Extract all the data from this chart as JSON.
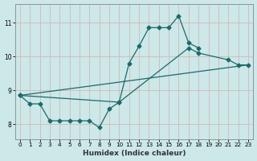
{
  "title": "",
  "xlabel": "Humidex (Indice chaleur)",
  "bg_color": "#cce8e8",
  "grid_color": "#b0d0d0",
  "line_color": "#1a6b6b",
  "xlim": [
    -0.5,
    23.5
  ],
  "ylim": [
    7.55,
    11.55
  ],
  "yticks": [
    8,
    9,
    10,
    11
  ],
  "xticks": [
    0,
    1,
    2,
    3,
    4,
    5,
    6,
    7,
    8,
    9,
    10,
    11,
    12,
    13,
    14,
    15,
    16,
    17,
    18,
    19,
    20,
    21,
    22,
    23
  ],
  "line1_x": [
    0,
    1,
    2,
    3,
    4,
    5,
    6,
    7,
    8,
    9,
    10,
    11,
    12,
    13,
    14,
    15,
    16,
    17,
    18
  ],
  "line1_y": [
    8.85,
    8.6,
    8.6,
    8.1,
    8.1,
    8.1,
    8.1,
    8.1,
    7.9,
    8.45,
    8.65,
    9.8,
    10.3,
    10.85,
    10.85,
    10.85,
    11.2,
    10.4,
    10.25
  ],
  "line2_x": [
    0,
    10,
    17,
    18,
    21,
    22,
    23
  ],
  "line2_y": [
    8.85,
    8.65,
    10.25,
    10.1,
    9.9,
    9.75,
    9.75
  ],
  "line3_x": [
    0,
    23
  ],
  "line3_y": [
    8.85,
    9.75
  ]
}
